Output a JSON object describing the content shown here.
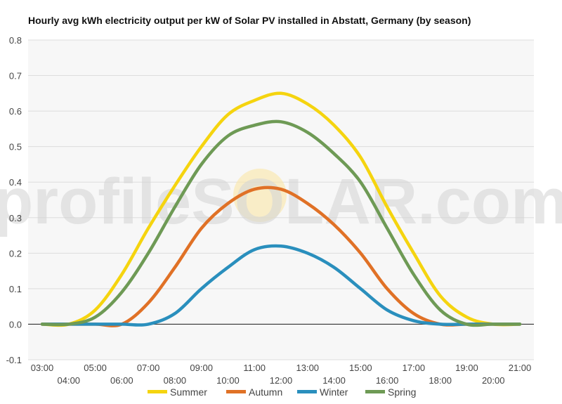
{
  "chart_data": {
    "type": "line",
    "title": "Hourly avg kWh electricity output per kW of Solar PV installed in Abstatt, Germany (by season)",
    "watermark": "profileSOLAR.com",
    "xlabel": "",
    "ylabel": "",
    "ylim": [
      -0.1,
      0.8
    ],
    "yticks": [
      -0.1,
      0.0,
      0.1,
      0.2,
      0.3,
      0.4,
      0.5,
      0.6,
      0.7,
      0.8
    ],
    "ytick_labels": [
      "-0.1",
      "0.0",
      "0.1",
      "0.2",
      "0.3",
      "0.4",
      "0.5",
      "0.6",
      "0.7",
      "0.8"
    ],
    "x": [
      3,
      4,
      5,
      6,
      7,
      8,
      9,
      10,
      11,
      12,
      13,
      14,
      15,
      16,
      17,
      18,
      19,
      20,
      21
    ],
    "xtick_labels": [
      "03:00",
      "04:00",
      "05:00",
      "06:00",
      "07:00",
      "08:00",
      "09:00",
      "10:00",
      "11:00",
      "12:00",
      "13:00",
      "14:00",
      "15:00",
      "16:00",
      "17:00",
      "18:00",
      "19:00",
      "20:00",
      "21:00"
    ],
    "grid": true,
    "legend_position": "bottom",
    "series": [
      {
        "name": "Summer",
        "color": "#f5d40f",
        "values": [
          0.0,
          0.0,
          0.04,
          0.14,
          0.27,
          0.39,
          0.5,
          0.59,
          0.63,
          0.65,
          0.62,
          0.56,
          0.47,
          0.33,
          0.2,
          0.08,
          0.02,
          0.0,
          0.0
        ]
      },
      {
        "name": "Autumn",
        "color": "#e07126",
        "values": [
          0.0,
          0.0,
          0.0,
          0.0,
          0.06,
          0.16,
          0.27,
          0.34,
          0.38,
          0.38,
          0.34,
          0.28,
          0.2,
          0.1,
          0.03,
          0.0,
          0.0,
          0.0,
          0.0
        ]
      },
      {
        "name": "Winter",
        "color": "#2a8fbd",
        "values": [
          0.0,
          0.0,
          0.0,
          0.0,
          0.0,
          0.03,
          0.1,
          0.16,
          0.21,
          0.22,
          0.2,
          0.16,
          0.1,
          0.04,
          0.01,
          0.0,
          0.0,
          0.0,
          0.0
        ]
      },
      {
        "name": "Spring",
        "color": "#6e9a55",
        "values": [
          0.0,
          0.0,
          0.02,
          0.09,
          0.2,
          0.33,
          0.45,
          0.53,
          0.56,
          0.57,
          0.54,
          0.48,
          0.4,
          0.27,
          0.14,
          0.04,
          0.0,
          0.0,
          0.0
        ]
      }
    ]
  }
}
